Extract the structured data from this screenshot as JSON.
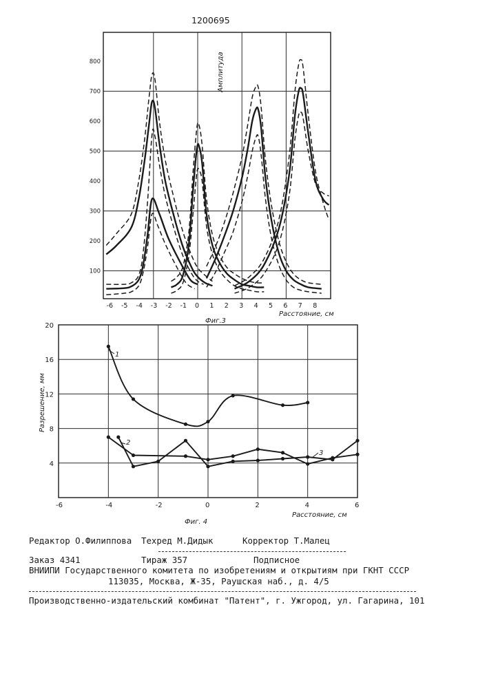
{
  "patent_number": "1200695",
  "figures": [
    {
      "caption": "Фиг.3",
      "ylabel": "Амплитуда",
      "xlabel": "Расстояние, см",
      "x_ticks": [
        "-6",
        "-5",
        "-4",
        "-3",
        "-2",
        "-1",
        "0",
        "1",
        "2",
        "3",
        "4",
        "5",
        "6",
        "7",
        "8"
      ],
      "y_ticks": [
        "100",
        "200",
        "300",
        "400",
        "500",
        "600",
        "700",
        "800"
      ]
    },
    {
      "caption": "Фиг. 4",
      "ylabel": "Разрешение, мм",
      "xlabel": "Расстояние, см",
      "x_ticks": [
        "-6",
        "-4",
        "-2",
        "0",
        "2",
        "4",
        "6"
      ],
      "y_ticks": [
        "4",
        "8",
        "12",
        "16",
        "20"
      ],
      "series_labels": [
        "1",
        "2",
        "3"
      ]
    }
  ],
  "chart_data": [
    {
      "type": "line",
      "xlim": [
        -6.2,
        8.9
      ],
      "ylim": [
        20,
        880
      ],
      "grid": true,
      "series": [
        {
          "style": "dashed",
          "x": [
            -6.2,
            -5.5,
            -4.5,
            -4,
            -3.6,
            -3.3,
            -3.1,
            -2.9,
            -2.6,
            -2.2,
            -1.6,
            -1,
            -0.4,
            0,
            0.5,
            1
          ],
          "y": [
            185,
            225,
            290,
            400,
            540,
            680,
            755,
            740,
            600,
            470,
            340,
            230,
            150,
            110,
            85,
            65
          ]
        },
        {
          "style": "solid",
          "x": [
            -6.2,
            -5.5,
            -4.5,
            -4,
            -3.6,
            -3.3,
            -3.1,
            -2.9,
            -2.6,
            -2.2,
            -1.6,
            -1,
            -0.4,
            0,
            0.5,
            1
          ],
          "y": [
            155,
            185,
            245,
            340,
            470,
            590,
            665,
            645,
            525,
            400,
            280,
            180,
            110,
            80,
            60,
            50
          ]
        },
        {
          "style": "dashed",
          "x": [
            -6.2,
            -5,
            -4.5,
            -4,
            -3.7,
            -3.4,
            -3.1,
            -2.9,
            -2.6,
            -2.2,
            -1.6,
            -1,
            -0.4,
            0,
            0.4
          ],
          "y": [
            55,
            55,
            60,
            85,
            160,
            330,
            555,
            550,
            455,
            350,
            240,
            150,
            90,
            65,
            55
          ]
        },
        {
          "style": "solid",
          "x": [
            -6.2,
            -5,
            -4.5,
            -4,
            -3.7,
            -3.4,
            -3.1,
            -2.6,
            -2,
            -1.2,
            -0.5,
            0
          ],
          "y": [
            40,
            42,
            48,
            70,
            120,
            220,
            340,
            290,
            210,
            130,
            70,
            55
          ]
        },
        {
          "style": "dashed",
          "x": [
            -6.2,
            -5,
            -4.5,
            -4,
            -3.7,
            -3.4,
            -3.1,
            -2.7,
            -2.2,
            -1.5,
            -0.8,
            -0.2
          ],
          "y": [
            20,
            25,
            30,
            50,
            95,
            180,
            290,
            250,
            190,
            120,
            60,
            40
          ]
        },
        {
          "style": "dashed",
          "x": [
            -1.8,
            -1.4,
            -1,
            -0.6,
            -0.3,
            -0.05,
            0.1,
            0.3,
            0.6,
            1,
            1.5,
            2,
            2.5,
            3,
            3.5,
            4,
            4.5
          ],
          "y": [
            65,
            80,
            115,
            230,
            440,
            580,
            585,
            520,
            340,
            220,
            150,
            110,
            90,
            75,
            65,
            60,
            60
          ]
        },
        {
          "style": "solid",
          "x": [
            -1.8,
            -1.4,
            -1,
            -0.6,
            -0.3,
            -0.05,
            0.1,
            0.3,
            0.6,
            1,
            1.5,
            2,
            2.5,
            3,
            3.5,
            4,
            4.5
          ],
          "y": [
            45,
            55,
            85,
            190,
            380,
            510,
            515,
            460,
            290,
            185,
            125,
            90,
            70,
            55,
            50,
            45,
            45
          ]
        },
        {
          "style": "dashed",
          "x": [
            -1.8,
            -1.4,
            -1,
            -0.6,
            -0.3,
            -0.05,
            0.1,
            0.3,
            0.6,
            1,
            1.5,
            2,
            2.5,
            3,
            3.5,
            4,
            4.5
          ],
          "y": [
            25,
            35,
            60,
            150,
            300,
            430,
            435,
            400,
            250,
            155,
            100,
            70,
            50,
            40,
            35,
            30,
            30
          ]
        },
        {
          "style": "dashed",
          "x": [
            0.6,
            1.2,
            1.8,
            2.4,
            3,
            3.4,
            3.7,
            3.95,
            4.1,
            4.3,
            4.6,
            5,
            5.5,
            6,
            6.5,
            7,
            7.5,
            8.4
          ],
          "y": [
            115,
            180,
            260,
            360,
            480,
            590,
            680,
            715,
            715,
            650,
            470,
            320,
            200,
            130,
            90,
            70,
            60,
            55
          ]
        },
        {
          "style": "solid",
          "x": [
            0.6,
            1.2,
            1.8,
            2.4,
            3,
            3.4,
            3.7,
            3.95,
            4.1,
            4.3,
            4.6,
            5,
            5.5,
            6,
            6.5,
            7,
            7.5,
            8.4
          ],
          "y": [
            75,
            140,
            215,
            300,
            410,
            510,
            600,
            640,
            640,
            580,
            410,
            270,
            160,
            100,
            70,
            55,
            45,
            40
          ]
        },
        {
          "style": "dashed",
          "x": [
            0.6,
            1.2,
            1.8,
            2.4,
            3,
            3.4,
            3.7,
            3.95,
            4.1,
            4.3,
            4.6,
            5,
            5.5,
            6,
            6.5,
            7,
            7.5,
            8.4
          ],
          "y": [
            45,
            95,
            160,
            230,
            330,
            420,
            500,
            545,
            550,
            490,
            340,
            210,
            120,
            70,
            45,
            35,
            30,
            25
          ]
        },
        {
          "style": "dashed",
          "x": [
            2.5,
            3.5,
            4.5,
            5.5,
            6.2,
            6.6,
            6.85,
            7,
            7.15,
            7.5,
            8,
            8.5,
            8.9
          ],
          "y": [
            50,
            80,
            140,
            270,
            480,
            700,
            790,
            805,
            780,
            620,
            430,
            330,
            270
          ]
        },
        {
          "style": "solid",
          "x": [
            2.5,
            3.5,
            4.5,
            5.5,
            6.2,
            6.6,
            6.85,
            7,
            7.15,
            7.5,
            8,
            8.5,
            8.9
          ],
          "y": [
            40,
            65,
            120,
            240,
            420,
            620,
            700,
            710,
            690,
            560,
            400,
            340,
            320
          ]
        },
        {
          "style": "dashed",
          "x": [
            2.5,
            3.5,
            4.5,
            5.5,
            6.2,
            6.6,
            6.85,
            7,
            7.15,
            7.5,
            8,
            8.5,
            8.9
          ],
          "y": [
            25,
            45,
            90,
            190,
            350,
            540,
            620,
            630,
            610,
            500,
            390,
            360,
            350
          ]
        }
      ]
    },
    {
      "type": "line",
      "xlim": [
        -6,
        6
      ],
      "ylim": [
        0,
        20
      ],
      "grid": true,
      "series": [
        {
          "name": "1",
          "x": [
            -4,
            -3,
            -0.9,
            0,
            1,
            3,
            4
          ],
          "y": [
            17.5,
            11.4,
            8.5,
            8.8,
            11.8,
            10.7,
            11.0
          ]
        },
        {
          "name": "2",
          "x": [
            -3.6,
            -3,
            -2,
            -0.9,
            0,
            1,
            2,
            3,
            4,
            5,
            6
          ],
          "y": [
            7.0,
            3.6,
            4.2,
            6.6,
            3.6,
            4.2,
            4.3,
            4.5,
            4.7,
            4.4,
            6.6
          ]
        },
        {
          "name": "3",
          "x": [
            -4,
            -3,
            -0.9,
            0,
            1,
            2,
            3,
            4,
            5,
            6
          ],
          "y": [
            7.0,
            4.9,
            4.8,
            4.4,
            4.8,
            5.6,
            5.2,
            3.9,
            4.6,
            5.0
          ]
        }
      ]
    }
  ],
  "imprint": {
    "editor": "Редактор О.Филиппова",
    "techred": "Техред М.Дидык",
    "corrector": "Корректор Т.Малец",
    "order": "Заказ 4341",
    "circulation": "Тираж 357",
    "subscription": "Подписное",
    "institute": "ВНИИПИ Государственного комитета по изобретениям и открытиям при ГКНТ СССР",
    "address": "113035, Москва, Ж-35, Раушская наб., д. 4/5",
    "publisher": "Производственно-издательский комбинат \"Патент\", г. Ужгород, ул. Гагарина, 101"
  },
  "colors": {
    "ink": "#1a1a1a",
    "grid": "#2a2a2a",
    "paper": "#ffffff"
  }
}
